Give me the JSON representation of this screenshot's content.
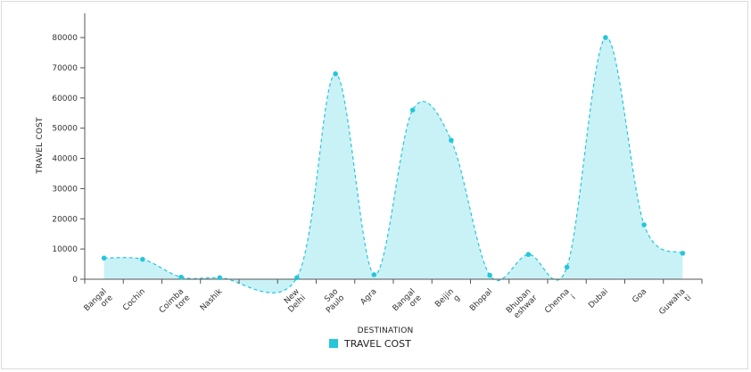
{
  "chart_data": {
    "type": "area",
    "xlabel": "DESTINATION",
    "ylabel": "TRAVEL COST",
    "ylim": [
      0,
      88000
    ],
    "yticks": [
      0,
      10000,
      20000,
      30000,
      40000,
      50000,
      60000,
      70000,
      80000
    ],
    "grid": false,
    "legend_position": "bottom-center",
    "categories": [
      [
        "Bangal",
        "ore"
      ],
      [
        "Cochin"
      ],
      [
        "Coimba",
        "tore"
      ],
      [
        "Nashik"
      ],
      [],
      [
        "New",
        "Delhi"
      ],
      [
        "Sao",
        "Paulo"
      ],
      [
        "Agra"
      ],
      [
        "Bangal",
        "ore"
      ],
      [
        "Beijin",
        "g"
      ],
      [
        "Bhopal"
      ],
      [
        "Bhuban",
        "eshwar"
      ],
      [
        "Chenna",
        "i"
      ],
      [
        "Dubai"
      ],
      [
        "Goa"
      ],
      [
        "Guwaha",
        "ti"
      ]
    ],
    "series": [
      {
        "name": "TRAVEL COST",
        "color": "#26c6da",
        "fill": "#c9f2f7",
        "values": [
          7000,
          6600,
          700,
          500,
          null,
          500,
          68000,
          1500,
          56000,
          46000,
          1300,
          8200,
          4000,
          80000,
          18000,
          8600
        ]
      }
    ]
  }
}
